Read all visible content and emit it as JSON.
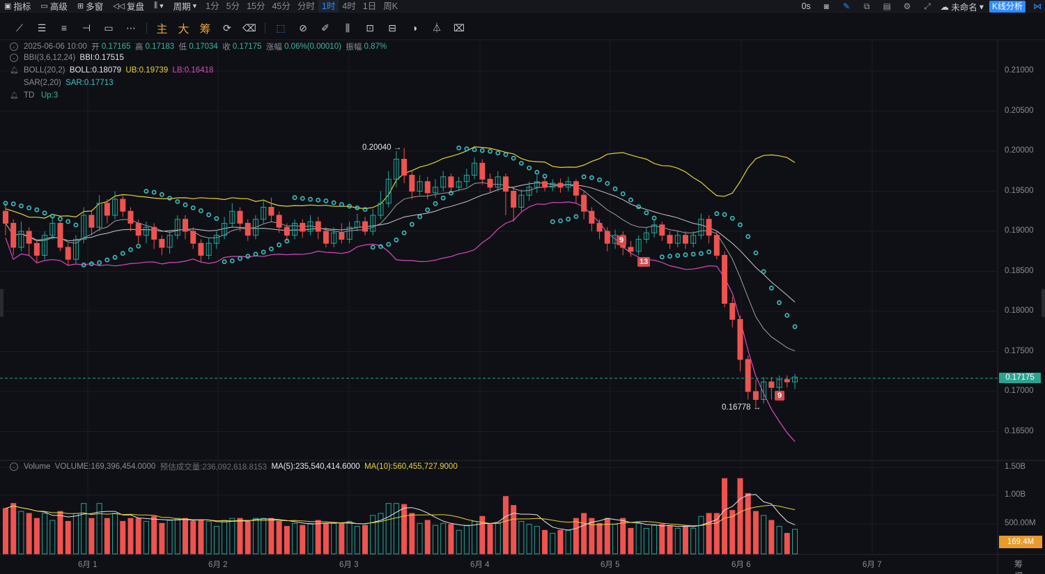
{
  "topbar": {
    "indicators": "指标",
    "advanced": "高级",
    "multi_window": "多窗",
    "replay": "复盘",
    "period": "周期",
    "periods": [
      "1分",
      "5分",
      "15分",
      "45分",
      "分时",
      "1时",
      "4时",
      "1日",
      "周K"
    ],
    "active_period": "1时",
    "latency": "0s",
    "unnamed": "未命名",
    "kline_analysis": "K线分析"
  },
  "drawbar": {
    "text_tools": [
      "主",
      "大",
      "筹"
    ]
  },
  "legend": {
    "date": "2025-06-06 10:00",
    "open_label": "开",
    "open": "0.17165",
    "high_label": "高",
    "high": "0.17183",
    "low_label": "低",
    "low": "0.17034",
    "close_label": "收",
    "close": "0.17175",
    "change_label": "涨幅",
    "change": "0.06%(0.00010)",
    "amp_label": "振幅",
    "amp": "0.87%",
    "bbi_name": "BBI(3,6,12,24)",
    "bbi_val": "BBI:0.17515",
    "boll_name": "BOLL(20,2)",
    "boll_mid": "BOLL:0.18079",
    "boll_ub": "UB:0.19739",
    "boll_lb": "LB:0.16418",
    "sar_name": "SAR(2,20)",
    "sar_val": "SAR:0.17713",
    "td_name": "TD",
    "td_val": "Up:3",
    "vol_name": "Volume",
    "vol_val": "VOLUME:169,396,454.0000",
    "vol_est": "预估成交量:236,092,618.8153",
    "ma5": "MA(5):235,540,414.6000",
    "ma10": "MA(10):560,455,727.9000"
  },
  "price_axis": [
    "0.21000",
    "0.20500",
    "0.20000",
    "0.19500",
    "0.19000",
    "0.18500",
    "0.18000",
    "0.17500",
    "0.17000",
    "0.16500"
  ],
  "volume_axis": [
    "1.50B",
    "1.00B",
    "500.00M"
  ],
  "current_price": "0.17175",
  "current_volume": "169.4M",
  "dates": [
    "6月 1",
    "6月 2",
    "6月 3",
    "6月 4",
    "6月 5",
    "6月 6",
    "6月 7"
  ],
  "annotations": {
    "high_mark": "0.20040",
    "low_mark": "0.16778",
    "td_badges": [
      "9",
      "13",
      "9"
    ]
  },
  "corner": [
    "筹",
    "爆"
  ],
  "colors": {
    "up": "#26a69a",
    "down": "#ef5350",
    "boll_ub": "#e6d23a",
    "boll_lb": "#d84bbf",
    "sar": "#3cc3c3",
    "accent": "#2f8cff"
  },
  "chart_data": {
    "type": "candlestick",
    "symbol_period": "1时",
    "ylim": [
      0.162,
      0.2125
    ],
    "series_values": [
      [
        0.1925,
        0.191,
        0.1935,
        0.1895
      ],
      [
        0.191,
        0.188,
        0.1915,
        0.187
      ],
      [
        0.188,
        0.19,
        0.1912,
        0.1875
      ],
      [
        0.19,
        0.1885,
        0.1905,
        0.187
      ],
      [
        0.1885,
        0.187,
        0.189,
        0.186
      ],
      [
        0.187,
        0.1895,
        0.19,
        0.1865
      ],
      [
        0.1895,
        0.191,
        0.1918,
        0.189
      ],
      [
        0.191,
        0.188,
        0.1912,
        0.1875
      ],
      [
        0.188,
        0.1865,
        0.1885,
        0.1858
      ],
      [
        0.1865,
        0.189,
        0.1895,
        0.186
      ],
      [
        0.189,
        0.192,
        0.193,
        0.1885
      ],
      [
        0.192,
        0.1905,
        0.1925,
        0.1895
      ],
      [
        0.1905,
        0.1935,
        0.1945,
        0.19
      ],
      [
        0.1935,
        0.192,
        0.194,
        0.191
      ],
      [
        0.192,
        0.194,
        0.195,
        0.1915
      ],
      [
        0.194,
        0.1925,
        0.1945,
        0.1918
      ],
      [
        0.1925,
        0.191,
        0.193,
        0.19
      ],
      [
        0.191,
        0.1895,
        0.1915,
        0.1885
      ],
      [
        0.1895,
        0.1905,
        0.1912,
        0.1885
      ],
      [
        0.1905,
        0.189,
        0.191,
        0.1878
      ],
      [
        0.189,
        0.188,
        0.1895,
        0.187
      ],
      [
        0.188,
        0.1895,
        0.19,
        0.1872
      ],
      [
        0.1895,
        0.1915,
        0.192,
        0.189
      ],
      [
        0.1915,
        0.19,
        0.192,
        0.189
      ],
      [
        0.19,
        0.1885,
        0.1905,
        0.1878
      ],
      [
        0.1885,
        0.187,
        0.189,
        0.1862
      ],
      [
        0.187,
        0.1885,
        0.1892,
        0.1865
      ],
      [
        0.1885,
        0.1895,
        0.19,
        0.1878
      ],
      [
        0.1895,
        0.191,
        0.1918,
        0.189
      ],
      [
        0.191,
        0.1925,
        0.1935,
        0.1905
      ],
      [
        0.1925,
        0.191,
        0.193,
        0.19
      ],
      [
        0.191,
        0.1895,
        0.1915,
        0.1888
      ],
      [
        0.1895,
        0.1915,
        0.192,
        0.189
      ],
      [
        0.1915,
        0.193,
        0.194,
        0.191
      ],
      [
        0.193,
        0.192,
        0.1942,
        0.1912
      ],
      [
        0.192,
        0.1905,
        0.1925,
        0.1898
      ],
      [
        0.1905,
        0.1895,
        0.191,
        0.1888
      ],
      [
        0.1895,
        0.191,
        0.1915,
        0.189
      ],
      [
        0.191,
        0.19,
        0.1915,
        0.1892
      ],
      [
        0.19,
        0.1912,
        0.192,
        0.1895
      ],
      [
        0.1912,
        0.19,
        0.1918,
        0.189
      ],
      [
        0.19,
        0.1885,
        0.1905,
        0.188
      ],
      [
        0.1885,
        0.1898,
        0.1905,
        0.188
      ],
      [
        0.1898,
        0.189,
        0.191,
        0.1885
      ],
      [
        0.189,
        0.1905,
        0.1912,
        0.1885
      ],
      [
        0.1905,
        0.1912,
        0.1922,
        0.19
      ],
      [
        0.1912,
        0.19,
        0.1918,
        0.1895
      ],
      [
        0.19,
        0.192,
        0.1928,
        0.1895
      ],
      [
        0.192,
        0.1935,
        0.195,
        0.1915
      ],
      [
        0.1935,
        0.1965,
        0.1975,
        0.193
      ],
      [
        0.1965,
        0.199,
        0.2,
        0.1955
      ],
      [
        0.199,
        0.197,
        0.2004,
        0.196
      ],
      [
        0.197,
        0.195,
        0.1975,
        0.194
      ],
      [
        0.195,
        0.1962,
        0.197,
        0.1945
      ],
      [
        0.1962,
        0.1948,
        0.1968,
        0.194
      ],
      [
        0.1948,
        0.1955,
        0.1965,
        0.1942
      ],
      [
        0.1955,
        0.1968,
        0.1975,
        0.195
      ],
      [
        0.1968,
        0.1955,
        0.1972,
        0.1948
      ],
      [
        0.1955,
        0.1962,
        0.1968,
        0.195
      ],
      [
        0.1962,
        0.197,
        0.1978,
        0.1955
      ],
      [
        0.197,
        0.1985,
        0.1992,
        0.1965
      ],
      [
        0.1985,
        0.1965,
        0.199,
        0.1958
      ],
      [
        0.1965,
        0.1955,
        0.1972,
        0.1948
      ],
      [
        0.1955,
        0.1968,
        0.1975,
        0.195
      ],
      [
        0.1968,
        0.195,
        0.1972,
        0.192
      ],
      [
        0.195,
        0.193,
        0.1955,
        0.1912
      ],
      [
        0.193,
        0.1945,
        0.1952,
        0.1925
      ],
      [
        0.1945,
        0.1955,
        0.1962,
        0.1938
      ],
      [
        0.1955,
        0.1962,
        0.197,
        0.1948
      ],
      [
        0.1962,
        0.1955,
        0.1968,
        0.195
      ],
      [
        0.1955,
        0.196,
        0.1965,
        0.195
      ],
      [
        0.196,
        0.1955,
        0.1966,
        0.1948
      ],
      [
        0.1955,
        0.1962,
        0.1968,
        0.195
      ],
      [
        0.1962,
        0.1945,
        0.1965,
        0.1935
      ],
      [
        0.1945,
        0.1925,
        0.195,
        0.1915
      ],
      [
        0.1925,
        0.191,
        0.193,
        0.19
      ],
      [
        0.191,
        0.19,
        0.1915,
        0.189
      ],
      [
        0.19,
        0.1885,
        0.1905,
        0.1875
      ],
      [
        0.1885,
        0.1895,
        0.1902,
        0.1878
      ],
      [
        0.1895,
        0.188,
        0.19,
        0.187
      ],
      [
        0.188,
        0.1875,
        0.1888,
        0.1868
      ],
      [
        0.1875,
        0.189,
        0.1895,
        0.187
      ],
      [
        0.189,
        0.1898,
        0.1905,
        0.1885
      ],
      [
        0.1898,
        0.1908,
        0.1915,
        0.1892
      ],
      [
        0.1908,
        0.1895,
        0.1912,
        0.1888
      ],
      [
        0.1895,
        0.1885,
        0.19,
        0.1878
      ],
      [
        0.1885,
        0.1895,
        0.19,
        0.188
      ],
      [
        0.1895,
        0.1885,
        0.19,
        0.1878
      ],
      [
        0.1885,
        0.1895,
        0.19,
        0.188
      ],
      [
        0.1895,
        0.1915,
        0.1922,
        0.189
      ],
      [
        0.1915,
        0.1895,
        0.192,
        0.1885
      ],
      [
        0.1895,
        0.187,
        0.19,
        0.1865
      ],
      [
        0.187,
        0.181,
        0.1875,
        0.1805
      ],
      [
        0.181,
        0.179,
        0.1818,
        0.178
      ],
      [
        0.179,
        0.174,
        0.1795,
        0.1725
      ],
      [
        0.174,
        0.17,
        0.1745,
        0.169
      ],
      [
        0.17,
        0.169,
        0.1715,
        0.1678
      ],
      [
        0.169,
        0.1712,
        0.1718,
        0.1685
      ],
      [
        0.1712,
        0.1705,
        0.1718,
        0.169
      ],
      [
        0.1705,
        0.1715,
        0.172,
        0.1698
      ],
      [
        0.1715,
        0.1712,
        0.172,
        0.1705
      ],
      [
        0.1712,
        0.1718,
        0.1722,
        0.1703
      ]
    ],
    "volume_values": []
  }
}
